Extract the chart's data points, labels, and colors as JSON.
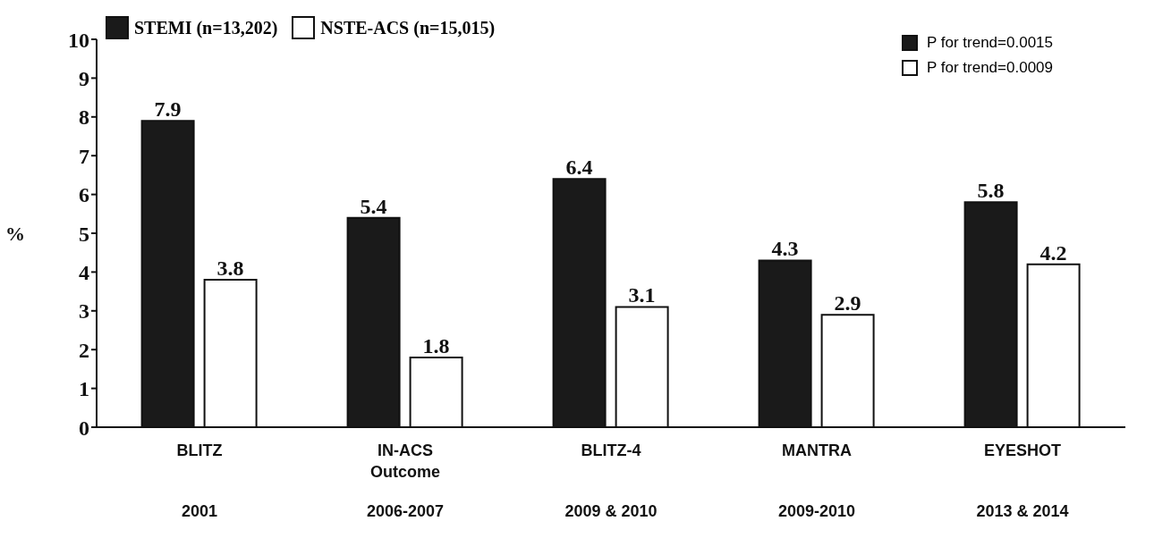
{
  "chart_data": {
    "type": "bar",
    "ylabel": "%",
    "categories": [
      "BLITZ\n\n2001",
      "IN-ACS\nOutcome\n2006-2007",
      "BLITZ-4\n\n2009 & 2010",
      "MANTRA\n\n2009-2010",
      "EYESHOT\n\n2013 & 2014"
    ],
    "series": [
      {
        "name": "STEMI (n=13,202)",
        "color": "#1a1a1a",
        "values": [
          7.9,
          5.4,
          6.4,
          4.3,
          5.8
        ]
      },
      {
        "name": "NSTE-ACS (n=15,015)",
        "color": "#ffffff",
        "values": [
          3.8,
          1.8,
          3.1,
          2.9,
          4.2
        ]
      }
    ],
    "ylim": [
      0,
      10
    ],
    "yticks": [
      0,
      1,
      2,
      3,
      4,
      5,
      6,
      7,
      8,
      9,
      10
    ],
    "grid": false,
    "legend": "top left",
    "data_labels": true,
    "annotations": [
      "P for trend=0.0015",
      "P for trend=0.0009"
    ]
  }
}
